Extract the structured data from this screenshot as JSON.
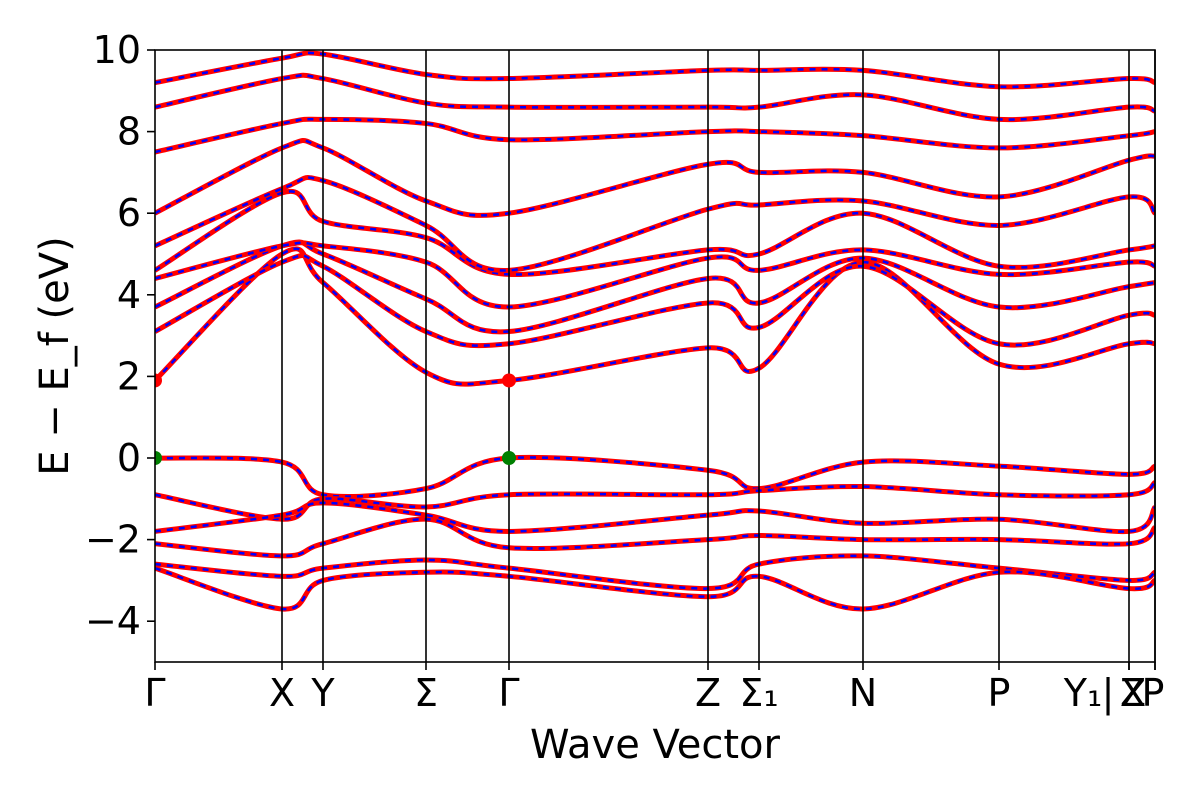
{
  "chart_data": {
    "type": "line",
    "title": "",
    "xlabel": "Wave Vector",
    "ylabel": "E − E_f (eV)",
    "ylim": [
      -5,
      10
    ],
    "yticks": [
      -4,
      -2,
      0,
      2,
      4,
      6,
      8,
      10
    ],
    "ytick_labels": [
      "−4",
      "−2",
      "0",
      "2",
      "4",
      "6",
      "8",
      "10"
    ],
    "xlim": [
      0,
      10
    ],
    "kpath": [
      {
        "label": "Γ",
        "x": 0.0
      },
      {
        "label": "X",
        "x": 1.27
      },
      {
        "label": "Y",
        "x": 1.68
      },
      {
        "label": "Σ",
        "x": 2.71
      },
      {
        "label": "Γ",
        "x": 3.54
      },
      {
        "label": "Z",
        "x": 5.53
      },
      {
        "label": "Σ₁",
        "x": 6.04
      },
      {
        "label": "N",
        "x": 7.08
      },
      {
        "label": "P",
        "x": 8.44
      },
      {
        "label": "Y₁",
        "x": 9.74
      },
      {
        "label": "Z",
        "x": 9.74
      },
      {
        "label": "X",
        "x": 10.0
      },
      {
        "label": "P",
        "x": 10.0
      }
    ],
    "vertical_lines_x": [
      1.27,
      1.68,
      2.71,
      3.54,
      5.53,
      6.04,
      7.08,
      8.44,
      9.74,
      10.0
    ],
    "grid": false,
    "legend": "none",
    "band_gap": {
      "cbm": 1.9,
      "vbm": 0.0,
      "cbm_x": [
        0.0,
        3.54
      ],
      "vbm_x": [
        0.0,
        3.54
      ]
    },
    "series": [
      {
        "values": [
          [
            0,
            -0.0
          ],
          [
            1.27,
            -0.1
          ],
          [
            1.68,
            -0.9
          ],
          [
            2.71,
            -0.75
          ],
          [
            3.54,
            0.0
          ],
          [
            5.53,
            -0.3
          ],
          [
            6.04,
            -0.75
          ],
          [
            7.08,
            -0.1
          ],
          [
            8.44,
            -0.2
          ],
          [
            9.74,
            -0.4
          ],
          [
            10.0,
            -0.2
          ]
        ]
      },
      {
        "values": [
          [
            0,
            -0.9
          ],
          [
            1.27,
            -1.5
          ],
          [
            1.68,
            -1.0
          ],
          [
            2.71,
            -1.2
          ],
          [
            3.54,
            -0.9
          ],
          [
            5.53,
            -0.9
          ],
          [
            6.04,
            -0.8
          ],
          [
            7.08,
            -0.7
          ],
          [
            8.44,
            -0.9
          ],
          [
            9.74,
            -0.9
          ],
          [
            10.0,
            -0.6
          ]
        ]
      },
      {
        "values": [
          [
            0,
            -1.8
          ],
          [
            1.27,
            -1.4
          ],
          [
            1.68,
            -1.1
          ],
          [
            2.71,
            -1.4
          ],
          [
            3.54,
            -1.8
          ],
          [
            5.53,
            -1.4
          ],
          [
            6.04,
            -1.3
          ],
          [
            7.08,
            -1.6
          ],
          [
            8.44,
            -1.5
          ],
          [
            9.74,
            -1.8
          ],
          [
            10.0,
            -1.2
          ]
        ]
      },
      {
        "values": [
          [
            0,
            -2.1
          ],
          [
            1.27,
            -2.4
          ],
          [
            1.68,
            -2.1
          ],
          [
            2.71,
            -1.5
          ],
          [
            3.54,
            -2.2
          ],
          [
            5.53,
            -2.0
          ],
          [
            6.04,
            -1.9
          ],
          [
            7.08,
            -2.0
          ],
          [
            8.44,
            -2.0
          ],
          [
            9.74,
            -2.1
          ],
          [
            10.0,
            -1.7
          ]
        ]
      },
      {
        "values": [
          [
            0,
            -2.6
          ],
          [
            1.27,
            -2.9
          ],
          [
            1.68,
            -2.7
          ],
          [
            2.71,
            -2.5
          ],
          [
            3.54,
            -2.7
          ],
          [
            5.53,
            -3.2
          ],
          [
            6.04,
            -2.6
          ],
          [
            7.08,
            -2.4
          ],
          [
            8.44,
            -2.7
          ],
          [
            9.74,
            -3.0
          ],
          [
            10.0,
            -2.8
          ]
        ]
      },
      {
        "values": [
          [
            0,
            -2.7
          ],
          [
            1.27,
            -3.7
          ],
          [
            1.68,
            -3.0
          ],
          [
            2.71,
            -2.8
          ],
          [
            3.54,
            -2.9
          ],
          [
            5.53,
            -3.4
          ],
          [
            6.04,
            -2.9
          ],
          [
            7.08,
            -3.7
          ],
          [
            8.44,
            -2.8
          ],
          [
            9.74,
            -3.2
          ],
          [
            10.0,
            -3.0
          ]
        ]
      },
      {
        "values": [
          [
            0,
            1.9
          ],
          [
            1.27,
            5.0
          ],
          [
            1.68,
            4.3
          ],
          [
            2.71,
            2.1
          ],
          [
            3.54,
            1.9
          ],
          [
            5.53,
            2.7
          ],
          [
            6.04,
            2.2
          ],
          [
            7.08,
            4.8
          ],
          [
            8.44,
            2.3
          ],
          [
            9.74,
            2.8
          ],
          [
            10.0,
            2.8
          ]
        ]
      },
      {
        "values": [
          [
            0,
            3.1
          ],
          [
            1.27,
            4.8
          ],
          [
            1.68,
            4.7
          ],
          [
            2.71,
            3.1
          ],
          [
            3.54,
            2.8
          ],
          [
            5.53,
            3.8
          ],
          [
            6.04,
            3.2
          ],
          [
            7.08,
            4.7
          ],
          [
            8.44,
            2.8
          ],
          [
            9.74,
            3.5
          ],
          [
            10.0,
            3.5
          ]
        ]
      },
      {
        "values": [
          [
            0,
            3.7
          ],
          [
            1.27,
            5.2
          ],
          [
            1.68,
            5.0
          ],
          [
            2.71,
            3.9
          ],
          [
            3.54,
            3.1
          ],
          [
            5.53,
            4.4
          ],
          [
            6.04,
            3.8
          ],
          [
            7.08,
            4.9
          ],
          [
            8.44,
            3.7
          ],
          [
            9.74,
            4.2
          ],
          [
            10.0,
            4.3
          ]
        ]
      },
      {
        "values": [
          [
            0,
            4.4
          ],
          [
            1.27,
            5.2
          ],
          [
            1.68,
            5.2
          ],
          [
            2.71,
            4.8
          ],
          [
            3.54,
            3.7
          ],
          [
            5.53,
            4.9
          ],
          [
            6.04,
            4.6
          ],
          [
            7.08,
            5.1
          ],
          [
            8.44,
            4.5
          ],
          [
            9.74,
            4.8
          ],
          [
            10.0,
            4.7
          ]
        ]
      },
      {
        "values": [
          [
            0,
            4.6
          ],
          [
            1.27,
            6.5
          ],
          [
            1.68,
            5.8
          ],
          [
            2.71,
            5.4
          ],
          [
            3.54,
            4.5
          ],
          [
            5.53,
            5.1
          ],
          [
            6.04,
            5.0
          ],
          [
            7.08,
            6.0
          ],
          [
            8.44,
            4.7
          ],
          [
            9.74,
            5.1
          ],
          [
            10.0,
            5.2
          ]
        ]
      },
      {
        "values": [
          [
            0,
            5.2
          ],
          [
            1.27,
            6.6
          ],
          [
            1.68,
            6.8
          ],
          [
            2.71,
            5.7
          ],
          [
            3.54,
            4.6
          ],
          [
            5.53,
            6.1
          ],
          [
            6.04,
            6.2
          ],
          [
            7.08,
            6.3
          ],
          [
            8.44,
            5.7
          ],
          [
            9.74,
            6.4
          ],
          [
            10.0,
            6.0
          ]
        ]
      },
      {
        "values": [
          [
            0,
            6.0
          ],
          [
            1.27,
            7.6
          ],
          [
            1.68,
            7.6
          ],
          [
            2.71,
            6.3
          ],
          [
            3.54,
            6.0
          ],
          [
            5.53,
            7.2
          ],
          [
            6.04,
            7.0
          ],
          [
            7.08,
            7.0
          ],
          [
            8.44,
            6.4
          ],
          [
            9.74,
            7.3
          ],
          [
            10.0,
            7.4
          ]
        ]
      },
      {
        "values": [
          [
            0,
            7.5
          ],
          [
            1.27,
            8.2
          ],
          [
            1.68,
            8.3
          ],
          [
            2.71,
            8.2
          ],
          [
            3.54,
            7.8
          ],
          [
            5.53,
            8.0
          ],
          [
            6.04,
            8.0
          ],
          [
            7.08,
            7.9
          ],
          [
            8.44,
            7.6
          ],
          [
            9.74,
            7.9
          ],
          [
            10.0,
            8.0
          ]
        ]
      },
      {
        "values": [
          [
            0,
            8.6
          ],
          [
            1.27,
            9.3
          ],
          [
            1.68,
            9.3
          ],
          [
            2.71,
            8.7
          ],
          [
            3.54,
            8.6
          ],
          [
            5.53,
            8.6
          ],
          [
            6.04,
            8.6
          ],
          [
            7.08,
            8.9
          ],
          [
            8.44,
            8.3
          ],
          [
            9.74,
            8.6
          ],
          [
            10.0,
            8.5
          ]
        ]
      },
      {
        "values": [
          [
            0,
            9.2
          ],
          [
            1.27,
            9.8
          ],
          [
            1.68,
            9.9
          ],
          [
            2.71,
            9.4
          ],
          [
            3.54,
            9.3
          ],
          [
            5.53,
            9.5
          ],
          [
            6.04,
            9.5
          ],
          [
            7.08,
            9.5
          ],
          [
            8.44,
            9.1
          ],
          [
            9.74,
            9.3
          ],
          [
            10.0,
            9.2
          ]
        ]
      }
    ]
  },
  "colors": {
    "band_solid": "#ff0000",
    "band_dash": "#0000ff",
    "vbm_marker": "#008000",
    "cbm_marker": "#ff0000"
  }
}
